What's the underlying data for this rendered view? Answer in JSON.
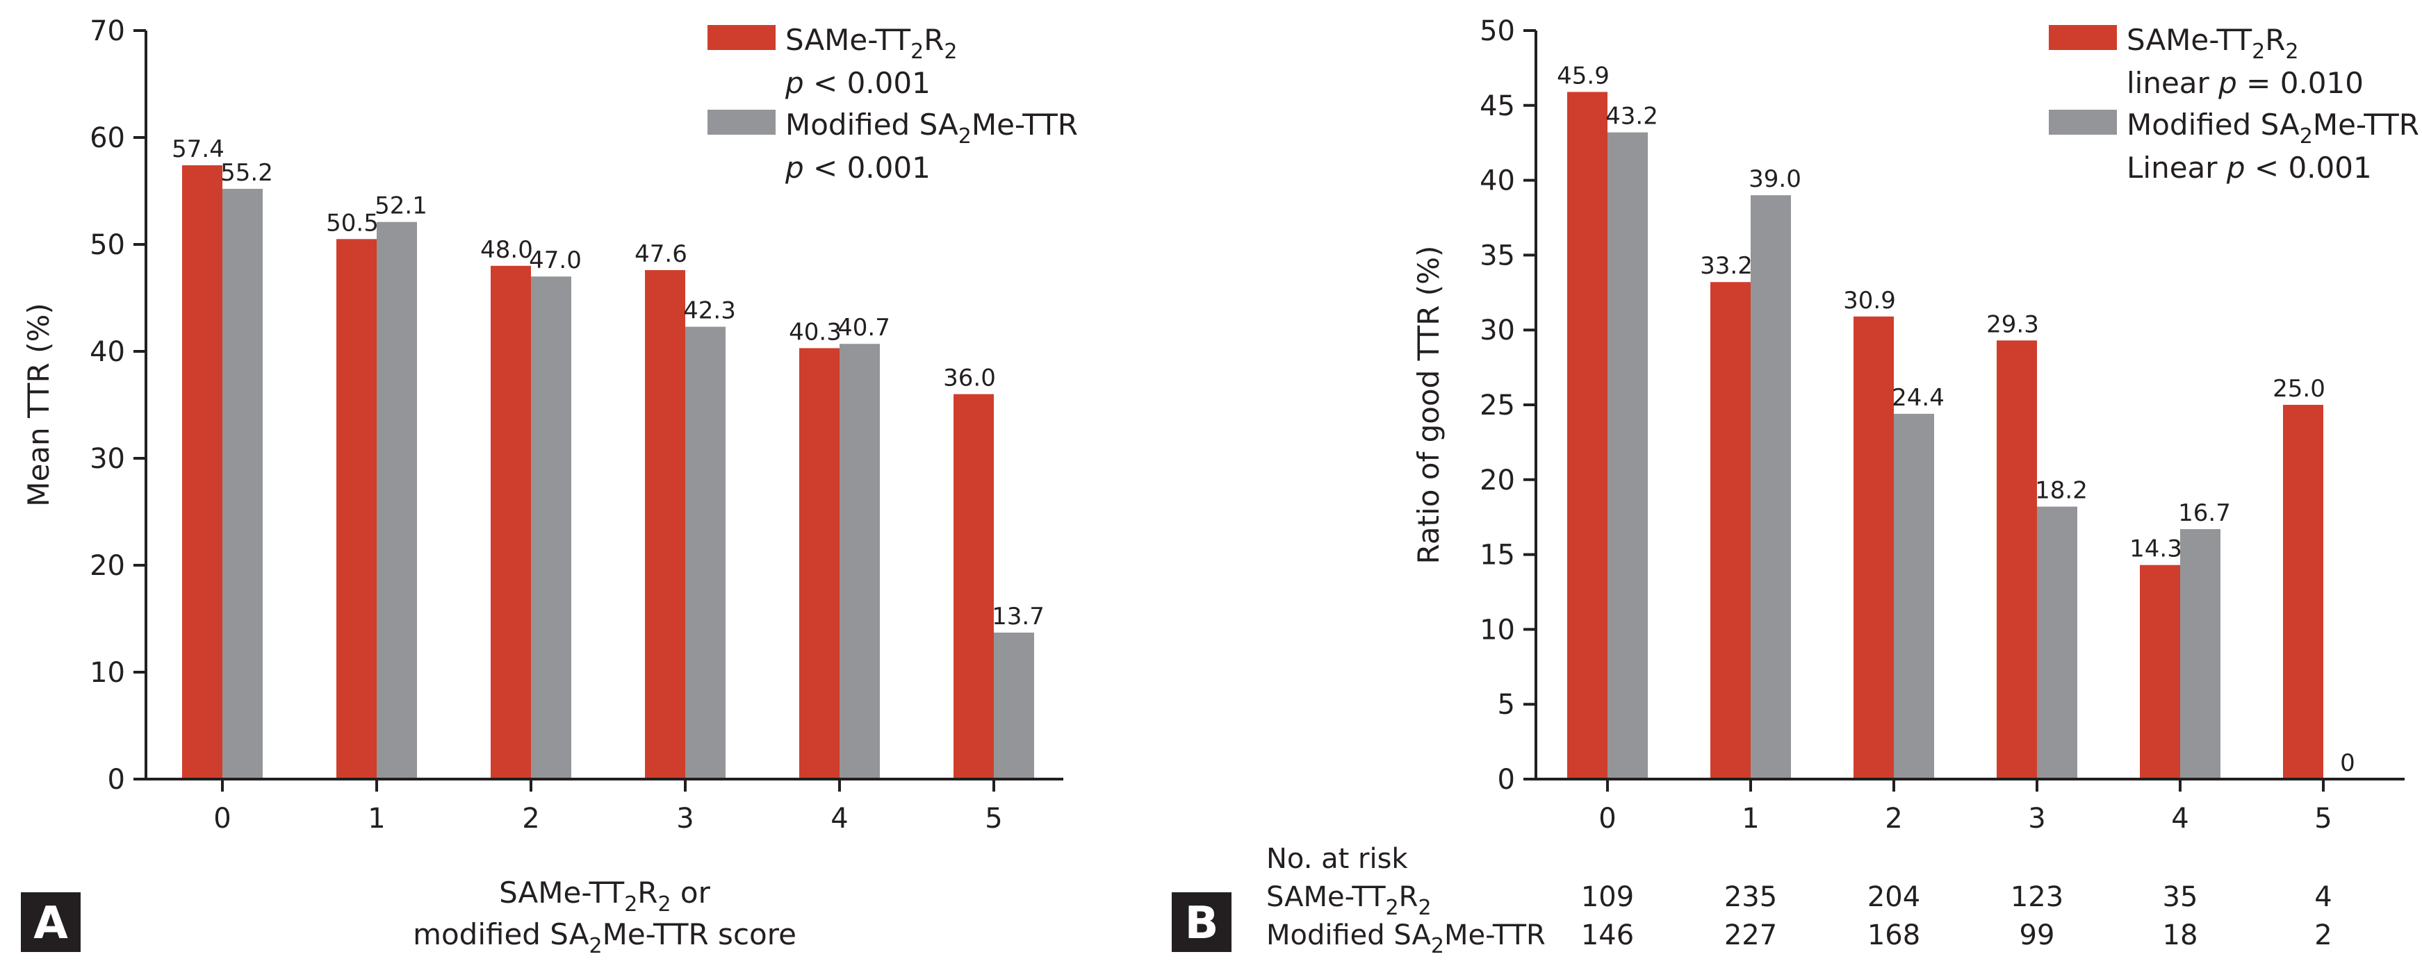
{
  "colors": {
    "series1": "#cf3e2c",
    "series2": "#939598",
    "text": "#231f20",
    "badge": "#231f20"
  },
  "chart_data": [
    {
      "type": "bar",
      "panel": "A",
      "categories": [
        "0",
        "1",
        "2",
        "3",
        "4",
        "5"
      ],
      "series": [
        {
          "name": "SAMe-TT2R2",
          "values": [
            57.4,
            50.5,
            48.0,
            47.6,
            40.3,
            36.0
          ],
          "labels": [
            "57.4",
            "50.5",
            "48.0",
            "47.6",
            "40.3",
            "36.0"
          ]
        },
        {
          "name": "Modified SA2Me-TTR",
          "values": [
            55.2,
            52.1,
            47.0,
            42.3,
            40.7,
            13.7
          ],
          "labels": [
            "55.2",
            "52.1",
            "47.0",
            "42.3",
            "40.7",
            "13.7"
          ]
        }
      ],
      "ylabel": "Mean TTR (%)",
      "xlabel_line1_prefix": "SAMe-TT",
      "xlabel_line1_sub1": "2",
      "xlabel_line1_mid": "R",
      "xlabel_line1_sub2": "2",
      "xlabel_line1_suffix": " or",
      "xlabel_line2_prefix": "modified SA",
      "xlabel_line2_sub": "2",
      "xlabel_line2_suffix": "Me-TTR score",
      "ylim": [
        0,
        70
      ],
      "yticks": [
        "0",
        "10",
        "20",
        "30",
        "40",
        "50",
        "60",
        "70"
      ],
      "legend": {
        "s1_prefix": "SAMe-TT",
        "s1_sub1": "2",
        "s1_mid": "R",
        "s1_sub2": "2",
        "s1_p_italic": "p",
        "s1_p_rest": " < 0.001",
        "s2_prefix": "Modified SA",
        "s2_sub": "2",
        "s2_suffix": "Me-TTR",
        "s2_p_italic": "p",
        "s2_p_rest": " < 0.001"
      }
    },
    {
      "type": "bar",
      "panel": "B",
      "categories": [
        "0",
        "1",
        "2",
        "3",
        "4",
        "5"
      ],
      "series": [
        {
          "name": "SAMe-TT2R2",
          "values": [
            45.9,
            33.2,
            30.9,
            29.3,
            14.3,
            25.0
          ],
          "labels": [
            "45.9",
            "33.2",
            "30.9",
            "29.3",
            "14.3",
            "25.0"
          ]
        },
        {
          "name": "Modified SA2Me-TTR",
          "values": [
            43.2,
            39.0,
            24.4,
            18.2,
            16.7,
            0
          ],
          "labels": [
            "43.2",
            "39.0",
            "24.4",
            "18.2",
            "16.7",
            "0"
          ]
        }
      ],
      "ylabel": "Ratio of good TTR (%)",
      "ylim": [
        0,
        50
      ],
      "yticks": [
        "0",
        "5",
        "10",
        "15",
        "20",
        "25",
        "30",
        "35",
        "40",
        "45",
        "50"
      ],
      "legend": {
        "s1_prefix": "SAMe-TT",
        "s1_sub1": "2",
        "s1_mid": "R",
        "s1_sub2": "2",
        "s1_p_pre": "linear ",
        "s1_p_italic": "p",
        "s1_p_rest": " = 0.010",
        "s2_prefix": "Modified SA",
        "s2_sub": "2",
        "s2_suffix": "Me-TTR",
        "s2_p_pre": "Linear ",
        "s2_p_italic": "p",
        "s2_p_rest": " < 0.001"
      },
      "risk_table": {
        "title": "No. at risk",
        "row1_prefix": "SAMe-TT",
        "row1_sub1": "2",
        "row1_mid": "R",
        "row1_sub2": "2",
        "row1_values": [
          "109",
          "235",
          "204",
          "123",
          "35",
          "4"
        ],
        "row2_prefix": "Modified SA",
        "row2_sub": "2",
        "row2_suffix": "Me-TTR",
        "row2_values": [
          "146",
          "227",
          "168",
          "99",
          "18",
          "2"
        ]
      }
    }
  ]
}
